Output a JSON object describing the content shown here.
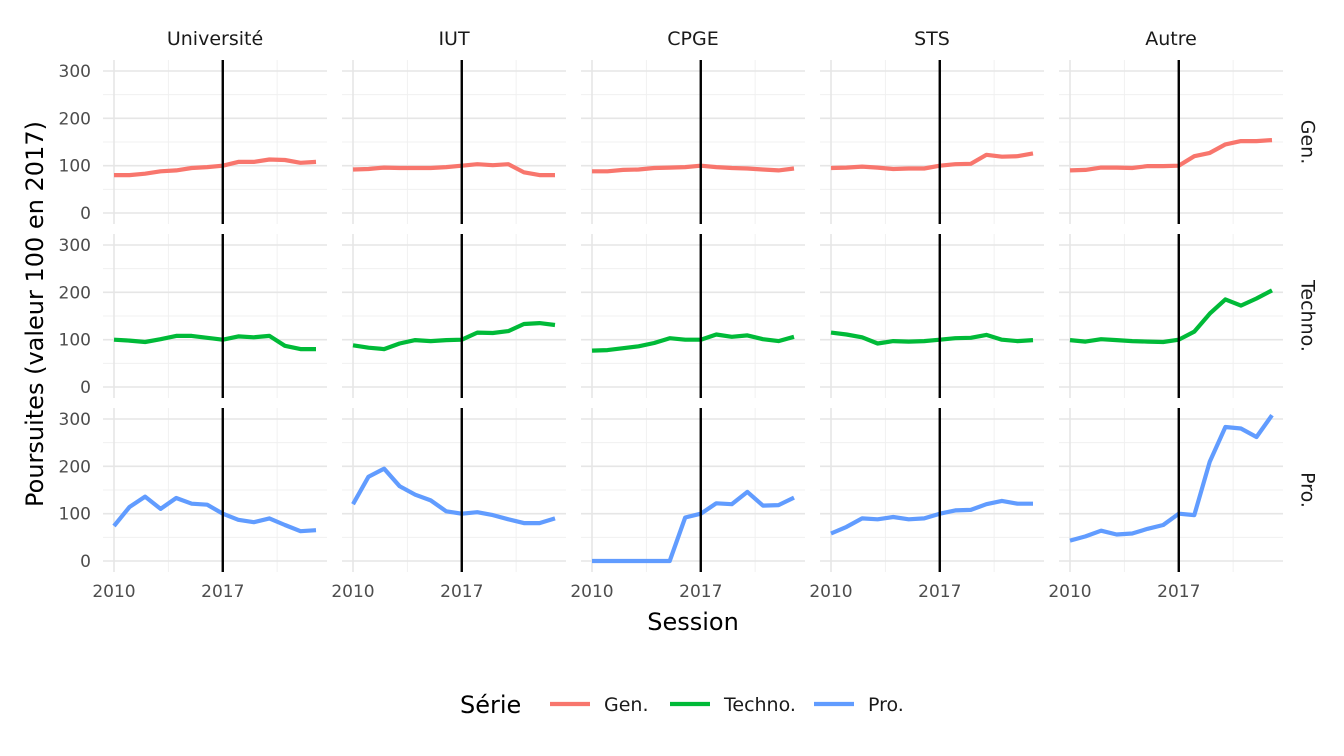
{
  "chart_data": {
    "type": "line",
    "facet_cols": [
      "Université",
      "IUT",
      "CPGE",
      "STS",
      "Autre"
    ],
    "facet_rows": [
      "Gen.",
      "Techno.",
      "Pro."
    ],
    "xlabel": "Session",
    "ylabel": "Poursuites (valeur 100 en 2017)",
    "x": [
      2010,
      2011,
      2012,
      2013,
      2014,
      2015,
      2016,
      2017,
      2018,
      2019,
      2020,
      2021,
      2022,
      2023
    ],
    "xlim": [
      2010,
      2023
    ],
    "x_ticks": [
      2010,
      2017
    ],
    "x_tick_labels": [
      "2010",
      "2017"
    ],
    "ylim": [
      0,
      300
    ],
    "y_ticks": [
      0,
      100,
      200,
      300
    ],
    "y_tick_labels": [
      "0",
      "100",
      "200",
      "300"
    ],
    "vline_x": 2017,
    "grid": true,
    "legend": {
      "title": "Série",
      "position": "bottom",
      "entries": [
        {
          "label": "Gen.",
          "color": "#F8766D"
        },
        {
          "label": "Techno.",
          "color": "#00BA38"
        },
        {
          "label": "Pro.",
          "color": "#619CFF"
        }
      ]
    },
    "series": [
      {
        "row": "Gen.",
        "col": "Université",
        "color": "#F8766D",
        "values": [
          80,
          80,
          83,
          88,
          90,
          95,
          97,
          100,
          108,
          108,
          113,
          112,
          106,
          108
        ]
      },
      {
        "row": "Gen.",
        "col": "IUT",
        "color": "#F8766D",
        "values": [
          92,
          93,
          96,
          95,
          95,
          95,
          97,
          100,
          103,
          101,
          103,
          86,
          80,
          80
        ]
      },
      {
        "row": "Gen.",
        "col": "CPGE",
        "color": "#F8766D",
        "values": [
          88,
          88,
          91,
          92,
          95,
          96,
          97,
          100,
          97,
          95,
          94,
          92,
          90,
          94
        ]
      },
      {
        "row": "Gen.",
        "col": "STS",
        "color": "#F8766D",
        "values": [
          95,
          96,
          98,
          96,
          93,
          94,
          94,
          100,
          103,
          104,
          123,
          119,
          120,
          126
        ]
      },
      {
        "row": "Gen.",
        "col": "Autre",
        "color": "#F8766D",
        "values": [
          90,
          91,
          96,
          96,
          95,
          99,
          99,
          100,
          120,
          127,
          145,
          152,
          152,
          154
        ]
      },
      {
        "row": "Techno.",
        "col": "Université",
        "color": "#00BA38",
        "values": [
          100,
          98,
          95,
          101,
          108,
          108,
          104,
          100,
          107,
          105,
          108,
          87,
          80,
          80
        ]
      },
      {
        "row": "Techno.",
        "col": "IUT",
        "color": "#00BA38",
        "values": [
          88,
          83,
          80,
          92,
          99,
          97,
          99,
          100,
          115,
          114,
          118,
          133,
          135,
          131
        ]
      },
      {
        "row": "Techno.",
        "col": "CPGE",
        "color": "#00BA38",
        "values": [
          77,
          78,
          82,
          86,
          93,
          103,
          100,
          100,
          111,
          106,
          109,
          101,
          97,
          106
        ]
      },
      {
        "row": "Techno.",
        "col": "STS",
        "color": "#00BA38",
        "values": [
          115,
          111,
          105,
          92,
          97,
          96,
          97,
          100,
          103,
          104,
          110,
          100,
          97,
          99
        ]
      },
      {
        "row": "Techno.",
        "col": "Autre",
        "color": "#00BA38",
        "values": [
          99,
          96,
          101,
          99,
          97,
          96,
          95,
          100,
          117,
          155,
          185,
          172,
          187,
          204
        ]
      },
      {
        "row": "Pro.",
        "col": "Université",
        "color": "#619CFF",
        "values": [
          74,
          114,
          136,
          110,
          133,
          121,
          119,
          100,
          87,
          82,
          90,
          76,
          63,
          65
        ]
      },
      {
        "row": "Pro.",
        "col": "IUT",
        "color": "#619CFF",
        "values": [
          120,
          178,
          195,
          158,
          140,
          128,
          105,
          100,
          103,
          97,
          88,
          80,
          80,
          90
        ]
      },
      {
        "row": "Pro.",
        "col": "CPGE",
        "color": "#619CFF",
        "values": [
          0,
          0,
          0,
          0,
          0,
          0,
          92,
          100,
          122,
          120,
          146,
          117,
          118,
          134
        ]
      },
      {
        "row": "Pro.",
        "col": "STS",
        "color": "#619CFF",
        "values": [
          58,
          72,
          90,
          88,
          93,
          88,
          90,
          100,
          107,
          108,
          120,
          127,
          121,
          121
        ]
      },
      {
        "row": "Pro.",
        "col": "Autre",
        "color": "#619CFF",
        "values": [
          43,
          52,
          64,
          56,
          58,
          68,
          76,
          100,
          97,
          210,
          283,
          280,
          262,
          308
        ]
      }
    ]
  }
}
